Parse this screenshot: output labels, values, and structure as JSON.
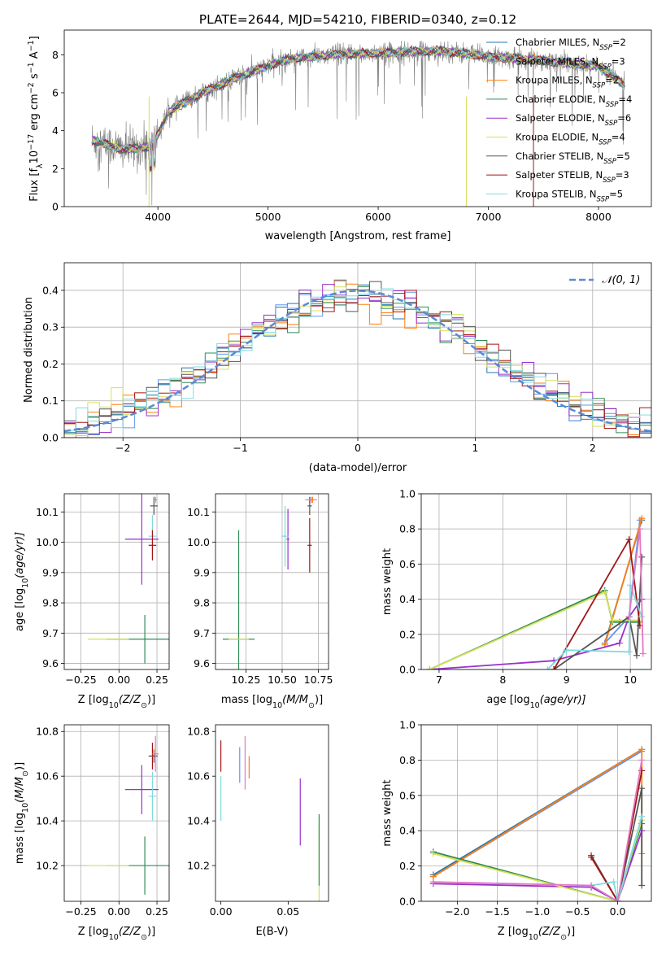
{
  "chart_data": [
    {
      "type": "line",
      "title": "PLATE=2644, MJD=54210, FIBERID=0340, z=0.12",
      "xlabel": "wavelength [Angstrom, rest frame]",
      "ylabel": "Flux [f",
      "ylabel_parts": [
        "Flux [f",
        "λ",
        "10",
        "−17",
        " erg cm",
        "−2",
        " s",
        "−1",
        " A",
        "−1",
        "]"
      ],
      "xlim": [
        3150,
        8480
      ],
      "ylim": [
        0,
        9.3
      ],
      "xticks": [
        4000,
        5000,
        6000,
        7000,
        8000
      ],
      "yticks": [
        0,
        2,
        4,
        6,
        8
      ],
      "grid": false,
      "legend_position": "right",
      "spectrum_x_range": [
        3400,
        8240
      ],
      "observed_envelope": [
        {
          "x": 3400,
          "y": 3.5
        },
        {
          "x": 3700,
          "y": 3.0
        },
        {
          "x": 3950,
          "y": 3.2
        },
        {
          "x": 4100,
          "y": 5.0
        },
        {
          "x": 4400,
          "y": 6.0
        },
        {
          "x": 4800,
          "y": 7.0
        },
        {
          "x": 5200,
          "y": 7.8
        },
        {
          "x": 5600,
          "y": 8.0
        },
        {
          "x": 6000,
          "y": 8.1
        },
        {
          "x": 6600,
          "y": 8.2
        },
        {
          "x": 7000,
          "y": 7.9
        },
        {
          "x": 7500,
          "y": 7.7
        },
        {
          "x": 8000,
          "y": 7.4
        },
        {
          "x": 8240,
          "y": 6.4
        }
      ],
      "series": [
        {
          "name": "Chabrier MILES, N",
          "nssp": "2",
          "color": "#1f77b4"
        },
        {
          "name": "Salpeter MILES, N",
          "nssp": "3",
          "color": "#6495ed"
        },
        {
          "name": "Kroupa MILES, N",
          "nssp": "2",
          "color": "#ff7f0e"
        },
        {
          "name": "Chabrier ELODIE, N",
          "nssp": "4",
          "color": "#2e8b57"
        },
        {
          "name": "Salpeter ELODIE, N",
          "nssp": "6",
          "color": "#9932cc"
        },
        {
          "name": "Kroupa ELODIE, N",
          "nssp": "4",
          "color": "#d4e157"
        },
        {
          "name": "Chabrier STELIB, N",
          "nssp": "5",
          "color": "#555555"
        },
        {
          "name": "Salpeter STELIB, N",
          "nssp": "3",
          "color": "#a31515"
        },
        {
          "name": "Kroupa STELIB, N",
          "nssp": "5",
          "color": "#7fdbe0"
        }
      ]
    },
    {
      "type": "line",
      "xlabel": "(data-model)/error",
      "ylabel": "Normed distribution",
      "xlim": [
        -2.5,
        2.5
      ],
      "ylim": [
        0,
        0.475
      ],
      "xticks": [
        -2,
        -1,
        0,
        1,
        2
      ],
      "yticks": [
        0.0,
        0.1,
        0.2,
        0.3,
        0.4
      ],
      "grid": true,
      "legend_position": "top-right",
      "gaussian_label": "𝒩(0, 1)",
      "histogram_bin_width": 0.1,
      "histogram_colors": [
        "#1f77b4",
        "#6495ed",
        "#ff7f0e",
        "#2e8b57",
        "#9932cc",
        "#d4e157",
        "#555555",
        "#a31515",
        "#7fdbe0"
      ]
    },
    {
      "type": "scatter",
      "xlabel": "Z [log",
      "xlabel_parts": [
        "Z [log",
        "10",
        "(Z/Z",
        "⊙",
        ")]"
      ],
      "ylabel": "age  [log",
      "ylabel_parts": [
        "age  [log",
        "10",
        "(age/yr)]"
      ],
      "xlim": [
        -0.36,
        0.33
      ],
      "ylim": [
        9.58,
        10.16
      ],
      "xticks": [
        -0.25,
        0.0,
        0.25
      ],
      "yticks": [
        9.6,
        9.7,
        9.8,
        9.9,
        10.0,
        10.1
      ],
      "grid": true,
      "points": [
        {
          "x": 0.17,
          "y": 9.68,
          "xerr": 0.5,
          "yerr": 0.08,
          "color": "#2e8b57"
        },
        {
          "x": -0.07,
          "y": 9.68,
          "xerr": 0.27,
          "yerr": 0.0,
          "color": "#d4e157"
        },
        {
          "x": 0.15,
          "y": 10.01,
          "xerr": 0.22,
          "yerr": 0.15,
          "color": "#9932cc"
        },
        {
          "x": 0.22,
          "y": 10.02,
          "xerr": 0.05,
          "yerr": 0.07,
          "color": "#7fdbe0"
        },
        {
          "x": 0.22,
          "y": 9.99,
          "xerr": 0.05,
          "yerr": 0.05,
          "color": "#a31515"
        },
        {
          "x": 0.23,
          "y": 10.12,
          "xerr": 0.05,
          "yerr": 0.03,
          "color": "#555555"
        },
        {
          "x": 0.24,
          "y": 10.14,
          "xerr": 0.02,
          "yerr": 0.01,
          "color": "#ff7f0e"
        },
        {
          "x": 0.23,
          "y": 10.14,
          "xerr": 0.01,
          "yerr": 0.01,
          "color": "#6495ed"
        }
      ]
    },
    {
      "type": "scatter",
      "xlabel": "mass [log",
      "xlabel_parts": [
        "mass [log",
        "10",
        "(M/M",
        "⊙",
        ")]"
      ],
      "ylabel": "",
      "xlim": [
        10.04,
        10.82
      ],
      "ylim": [
        9.58,
        10.16
      ],
      "xticks": [
        10.25,
        10.5,
        10.75
      ],
      "yticks": [
        9.6,
        9.7,
        9.8,
        9.9,
        10.0,
        10.1
      ],
      "grid": true,
      "points": [
        {
          "x": 10.2,
          "y": 9.68,
          "xerr": 0.22,
          "yerr": 0.36,
          "color": "#2e8b57"
        },
        {
          "x": 10.2,
          "y": 9.68,
          "xerr": 0.14,
          "yerr": 0.0,
          "color": "#d4e157"
        },
        {
          "x": 10.54,
          "y": 10.01,
          "xerr": 0.02,
          "yerr": 0.1,
          "color": "#9932cc"
        },
        {
          "x": 10.52,
          "y": 10.02,
          "xerr": 0.05,
          "yerr": 0.1,
          "color": "#7fdbe0"
        },
        {
          "x": 10.69,
          "y": 9.99,
          "xerr": 0.03,
          "yerr": 0.09,
          "color": "#a31515"
        },
        {
          "x": 10.69,
          "y": 10.12,
          "xerr": 0.03,
          "yerr": 0.03,
          "color": "#555555"
        },
        {
          "x": 10.7,
          "y": 10.14,
          "xerr": 0.08,
          "yerr": 0.01,
          "color": "#e377c2"
        },
        {
          "x": 10.71,
          "y": 10.14,
          "xerr": 0.01,
          "yerr": 0.01,
          "color": "#ff7f0e"
        }
      ]
    },
    {
      "type": "line",
      "xlabel": "age  [log",
      "xlabel_parts": [
        "age  [log",
        "10",
        "(age/yr)]"
      ],
      "ylabel": "mass weight",
      "xlim": [
        6.72,
        10.33
      ],
      "ylim": [
        0,
        1.0
      ],
      "xticks": [
        7,
        8,
        9,
        10
      ],
      "yticks": [
        0.0,
        0.2,
        0.4,
        0.6,
        0.8,
        1.0
      ],
      "grid": true,
      "series": [
        {
          "color": "#1f77b4",
          "x": [
            9.6,
            10.18
          ],
          "y": [
            0.15,
            0.85
          ]
        },
        {
          "color": "#6495ed",
          "x": [
            9.6,
            9.98,
            10.15
          ],
          "y": [
            0.15,
            0.3,
            0.85
          ]
        },
        {
          "color": "#ff7f0e",
          "x": [
            9.6,
            10.18
          ],
          "y": [
            0.14,
            0.86
          ]
        },
        {
          "color": "#2e8b57",
          "x": [
            6.85,
            9.6,
            9.72,
            9.83,
            10.15
          ],
          "y": [
            0.0,
            0.45,
            0.27,
            0.27,
            0.27
          ]
        },
        {
          "color": "#9932cc",
          "x": [
            6.85,
            8.8,
            9.83,
            9.98,
            10.18
          ],
          "y": [
            0.0,
            0.05,
            0.15,
            0.3,
            0.4
          ]
        },
        {
          "color": "#d4e157",
          "x": [
            6.85,
            9.6,
            9.72,
            10.15
          ],
          "y": [
            0.0,
            0.44,
            0.28,
            0.28
          ]
        },
        {
          "color": "#555555",
          "x": [
            8.8,
            9.98,
            10.1,
            10.18
          ],
          "y": [
            0.0,
            0.3,
            0.08,
            0.64
          ]
        },
        {
          "color": "#a31515",
          "x": [
            8.8,
            9.98,
            10.15
          ],
          "y": [
            0.0,
            0.74,
            0.25
          ]
        },
        {
          "color": "#7fdbe0",
          "x": [
            8.7,
            9.0,
            9.98,
            10.0,
            10.18
          ],
          "y": [
            0.0,
            0.11,
            0.1,
            0.48,
            0.3
          ]
        },
        {
          "color": "#e377c2",
          "x": [
            9.98,
            10.15,
            10.2
          ],
          "y": [
            0.3,
            0.8,
            0.09
          ]
        }
      ]
    },
    {
      "type": "scatter",
      "xlabel": "Z [log",
      "xlabel_parts": [
        "Z [log",
        "10",
        "(Z/Z",
        "⊙",
        ")]"
      ],
      "ylabel": "mass [log",
      "ylabel_parts": [
        "mass [log",
        "10",
        "(M/M",
        "⊙",
        ")]"
      ],
      "xlim": [
        -0.36,
        0.33
      ],
      "ylim": [
        10.04,
        10.83
      ],
      "xticks": [
        -0.25,
        0.0,
        0.25
      ],
      "yticks": [
        10.2,
        10.4,
        10.6,
        10.8
      ],
      "grid": true,
      "points": [
        {
          "x": 0.17,
          "y": 10.2,
          "xerr": 0.52,
          "yerr": 0.13,
          "color": "#2e8b57"
        },
        {
          "x": -0.07,
          "y": 10.2,
          "xerr": 0.27,
          "yerr": 0.0,
          "color": "#d4e157"
        },
        {
          "x": 0.15,
          "y": 10.54,
          "xerr": 0.22,
          "yerr": 0.11,
          "color": "#9932cc"
        },
        {
          "x": 0.22,
          "y": 10.51,
          "xerr": 0.05,
          "yerr": 0.11,
          "color": "#7fdbe0"
        },
        {
          "x": 0.22,
          "y": 10.69,
          "xerr": 0.05,
          "yerr": 0.06,
          "color": "#a31515"
        },
        {
          "x": 0.23,
          "y": 10.69,
          "xerr": 0.05,
          "yerr": 0.03,
          "color": "#555555"
        },
        {
          "x": 0.24,
          "y": 10.7,
          "xerr": 0.04,
          "yerr": 0.08,
          "color": "#e377c2"
        },
        {
          "x": 0.23,
          "y": 10.71,
          "xerr": 0.01,
          "yerr": 0.01,
          "color": "#ff7f0e"
        }
      ]
    },
    {
      "type": "scatter",
      "xlabel": "E(B-V)",
      "ylabel": "",
      "xlim": [
        -0.004,
        0.08
      ],
      "ylim": [
        10.04,
        10.83
      ],
      "xticks": [
        0.0,
        0.05
      ],
      "yticks": [
        10.2,
        10.4,
        10.6,
        10.8
      ],
      "grid": false,
      "points": [
        {
          "x": 0.0,
          "y": 10.5,
          "yerr": 0.1,
          "color": "#7fdbe0"
        },
        {
          "x": 0.0,
          "y": 10.69,
          "yerr": 0.07,
          "color": "#a31515"
        },
        {
          "x": 0.014,
          "y": 10.65,
          "yerr": 0.08,
          "color": "#6495ed"
        },
        {
          "x": 0.018,
          "y": 10.66,
          "yerr": 0.12,
          "color": "#e377c2"
        },
        {
          "x": 0.021,
          "y": 10.64,
          "yerr": 0.05,
          "color": "#ff7f0e"
        },
        {
          "x": 0.059,
          "y": 10.44,
          "yerr": 0.15,
          "color": "#9932cc"
        },
        {
          "x": 0.073,
          "y": 10.2,
          "yerr": 0.2,
          "color": "#d4e157"
        },
        {
          "x": 0.073,
          "y": 10.27,
          "yerr": 0.16,
          "color": "#2e8b57"
        }
      ]
    },
    {
      "type": "line",
      "xlabel": "Z [log",
      "xlabel_parts": [
        "Z [log",
        "10",
        "(Z/Z",
        "⊙",
        ")]"
      ],
      "ylabel": "mass weight",
      "xlim": [
        -2.45,
        0.42
      ],
      "ylim": [
        0,
        1.0
      ],
      "xticks": [
        -2.0,
        -1.5,
        -1.0,
        -0.5,
        0.0
      ],
      "yticks": [
        0.0,
        0.2,
        0.4,
        0.6,
        0.8,
        1.0
      ],
      "grid": true,
      "series": [
        {
          "color": "#1f77b4",
          "x": [
            -2.3,
            0.3
          ],
          "y": [
            0.15,
            0.86
          ]
        },
        {
          "color": "#6495ed",
          "x": [
            -2.3,
            0.3
          ],
          "y": [
            0.14,
            0.85
          ]
        },
        {
          "color": "#ff7f0e",
          "x": [
            -2.3,
            0.3,
            0.3
          ],
          "y": [
            0.14,
            0.86,
            0.27
          ]
        },
        {
          "color": "#2e8b57",
          "x": [
            -2.3,
            0.0,
            0.3
          ],
          "y": [
            0.28,
            0.0,
            0.44
          ]
        },
        {
          "color": "#9932cc",
          "x": [
            -2.3,
            -0.33,
            0.0,
            0.3
          ],
          "y": [
            0.1,
            0.08,
            0.0,
            0.4
          ]
        },
        {
          "color": "#d4e157",
          "x": [
            -2.3,
            0.0,
            0.3
          ],
          "y": [
            0.27,
            0.0,
            0.46
          ]
        },
        {
          "color": "#555555",
          "x": [
            -0.33,
            0.0,
            0.3,
            0.3
          ],
          "y": [
            0.26,
            0.0,
            0.64,
            0.09
          ]
        },
        {
          "color": "#a31515",
          "x": [
            -0.33,
            0.0,
            0.3
          ],
          "y": [
            0.25,
            0.0,
            0.74
          ]
        },
        {
          "color": "#7fdbe0",
          "x": [
            -0.33,
            -0.05,
            0.0,
            0.3
          ],
          "y": [
            0.09,
            0.11,
            0.0,
            0.48
          ]
        },
        {
          "color": "#e377c2",
          "x": [
            -2.3,
            -0.33,
            0.0,
            0.3
          ],
          "y": [
            0.11,
            0.09,
            0.0,
            0.8
          ]
        }
      ]
    }
  ]
}
